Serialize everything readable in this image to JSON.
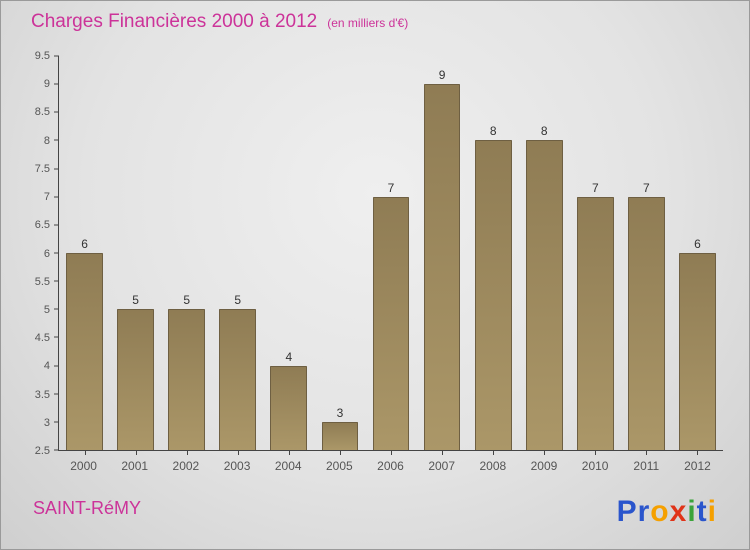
{
  "title": "Charges Financières 2000 à 2012",
  "subtitle": "(en milliers d'€)",
  "footer": {
    "company": "SAINT-RéMY",
    "logo_name": "Proxiti"
  },
  "logo_letters": [
    {
      "ch": "P",
      "color": "#2a55cc"
    },
    {
      "ch": "r",
      "color": "#2a55cc"
    },
    {
      "ch": "o",
      "color": "#f5a000"
    },
    {
      "ch": "x",
      "color": "#e03318"
    },
    {
      "ch": "i",
      "color": "#3aa43a"
    },
    {
      "ch": "t",
      "color": "#2a55cc"
    },
    {
      "ch": "i",
      "color": "#f5a000"
    }
  ],
  "colors": {
    "title": "#cc3399",
    "bar_top": "#8f7c54",
    "bar_bottom": "#ab9768",
    "bar_border": "#6e5f42",
    "axis": "#444444",
    "tick_label": "#555555",
    "value_label": "#333333"
  },
  "chart_data": {
    "type": "bar",
    "title": "Charges Financières 2000 à 2012",
    "subtitle": "(en milliers d'€)",
    "categories": [
      "2000",
      "2001",
      "2002",
      "2003",
      "2004",
      "2005",
      "2006",
      "2007",
      "2008",
      "2009",
      "2010",
      "2011",
      "2012"
    ],
    "values": [
      6,
      5,
      5,
      5,
      4,
      3,
      7,
      9,
      8,
      8,
      7,
      7,
      6
    ],
    "xlabel": "",
    "ylabel": "",
    "ylim": [
      2.5,
      9.5
    ],
    "ytick_step": 0.5,
    "grid": false,
    "legend": "none",
    "value_labels_shown": true
  }
}
